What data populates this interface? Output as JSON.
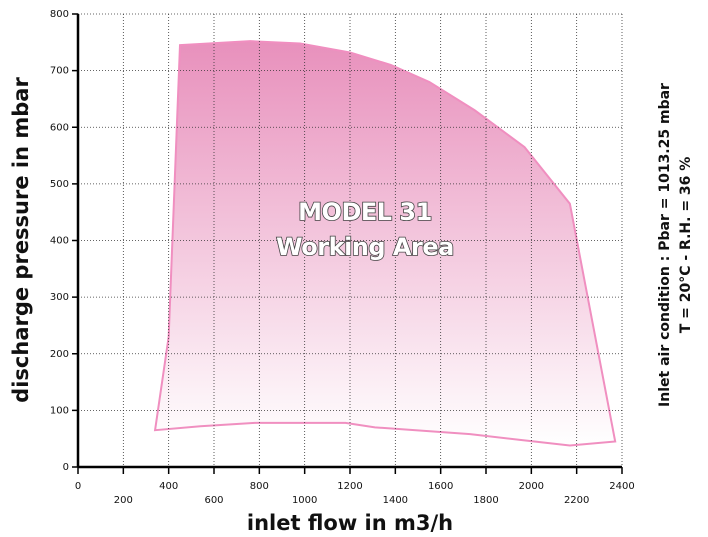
{
  "chart_data": {
    "type": "area",
    "xlabel": "inlet flow in m3/h",
    "ylabel": "discharge pressure in mbar",
    "notes": [
      "Inlet air condition : Pbar = 1013.25 mbar",
      "T = 20°C - R.H. = 36 %"
    ],
    "annotations": [
      "MODEL 31",
      "Working Area"
    ],
    "x": [
      450,
      760,
      980,
      1200,
      1380,
      1550,
      1750,
      1970,
      2170,
      2370,
      2170,
      1950,
      1730,
      1310,
      1180,
      780,
      540,
      340,
      400
    ],
    "values": [
      745,
      752,
      748,
      732,
      710,
      680,
      630,
      565,
      465,
      45,
      38,
      48,
      58,
      70,
      78,
      78,
      72,
      65,
      230
    ],
    "color": "#f08fc0",
    "fill_top": "#e890bc",
    "xlim": [
      0,
      2400
    ],
    "xticks": [
      0,
      200,
      400,
      600,
      800,
      1000,
      1200,
      1400,
      1600,
      1800,
      2000,
      2200,
      2400
    ],
    "ylim": [
      0,
      800
    ],
    "yticks": [
      0,
      100,
      200,
      300,
      400,
      500,
      600,
      700,
      800
    ],
    "grid": true
  }
}
